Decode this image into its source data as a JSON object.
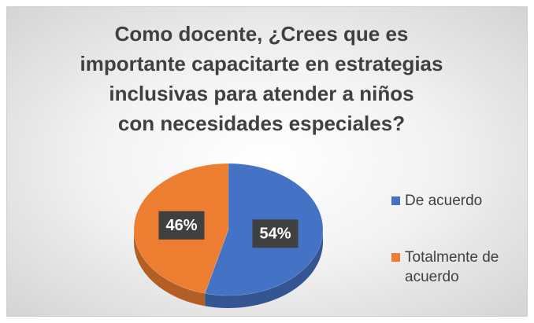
{
  "chart_data": {
    "type": "pie",
    "title": "Como docente, ¿Crees que es importante capacitarte en estrategias inclusivas para atender a niños con necesidades especiales?",
    "categories": [
      "De acuerdo",
      "Totalmente de acuerdo"
    ],
    "values": [
      54,
      46
    ],
    "value_labels": [
      "54%",
      "46%"
    ],
    "colors": [
      "#4472c4",
      "#ed7d31"
    ],
    "legend": "right"
  }
}
